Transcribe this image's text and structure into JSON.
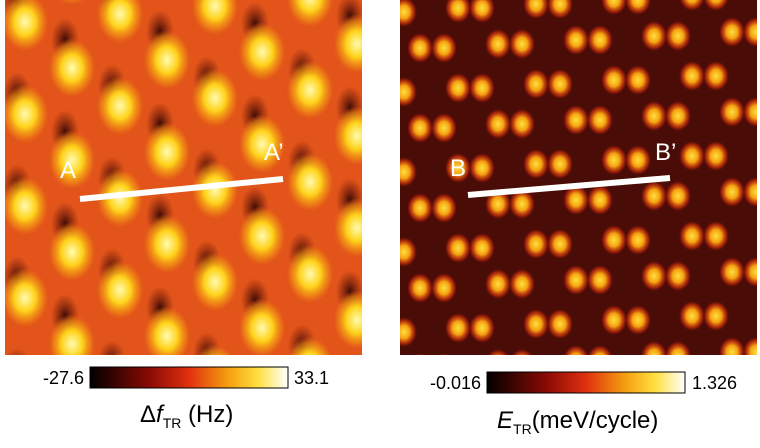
{
  "panels": [
    {
      "markers": {
        "start": "A",
        "end": "A’"
      },
      "colorbar": {
        "min": "-27.6",
        "max": "33.1",
        "symbol": "Δ",
        "variable": "f",
        "subscript": "TR",
        "unit": " (Hz)"
      }
    },
    {
      "markers": {
        "start": "B",
        "end": "B’"
      },
      "colorbar": {
        "min": "-0.016",
        "max": "1.326",
        "symbol": "",
        "variable": "E",
        "subscript": "TR",
        "unit": "(meV/cycle)"
      }
    }
  ]
}
